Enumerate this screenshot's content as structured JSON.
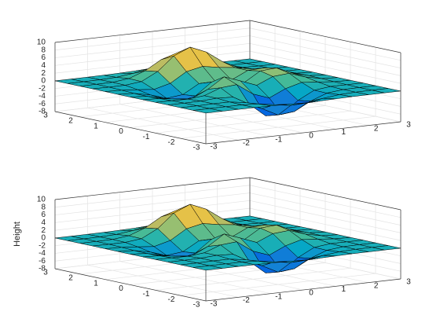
{
  "chart_data": [
    {
      "type": "surface",
      "x": [
        -3,
        -2.5,
        -2,
        -1.5,
        -1,
        -0.5,
        0,
        0.5,
        1,
        1.5,
        2,
        2.5,
        3
      ],
      "y": [
        -3,
        -2.5,
        -2,
        -1.5,
        -1,
        -0.5,
        0,
        0.5,
        1,
        1.5,
        2,
        2.5,
        3
      ],
      "z": [
        [
          0,
          0,
          0,
          0,
          -0.03,
          -0.14,
          -0.24,
          -0.22,
          -0.11,
          -0.03,
          -0.01,
          0,
          0
        ],
        [
          0,
          0,
          0.01,
          0,
          -0.23,
          -0.91,
          -1.57,
          -1.41,
          -0.69,
          -0.18,
          -0.03,
          0,
          0
        ],
        [
          0,
          0.01,
          0.05,
          0.05,
          -0.59,
          -2.63,
          -4.75,
          -4.34,
          -2.1,
          -0.53,
          -0.06,
          0,
          0
        ],
        [
          0,
          0.01,
          0.08,
          0.33,
          0.15,
          -2.19,
          -5.68,
          -5.76,
          -2.63,
          -0.44,
          0.04,
          0.03,
          0
        ],
        [
          -0.01,
          -0.06,
          -0.13,
          0.3,
          1.86,
          2.22,
          -0.72,
          -2.22,
          -0.27,
          0.88,
          0.5,
          0.11,
          0.01
        ],
        [
          -0.03,
          -0.2,
          -0.8,
          -1.21,
          0.8,
          3.55,
          2,
          0.39,
          2.2,
          2.56,
          1.12,
          0.24,
          0.03
        ],
        [
          -0.04,
          -0.3,
          -1.33,
          -2.77,
          -1.65,
          1.48,
          0.98,
          0.37,
          2.94,
          3.27,
          1.41,
          0.3,
          0.03
        ],
        [
          -0.03,
          -0.25,
          -1.12,
          -2.49,
          -2,
          0.39,
          0.46,
          0.38,
          2.38,
          2.56,
          1.09,
          0.23,
          0.03
        ],
        [
          -0.01,
          -0.11,
          -0.48,
          -0.86,
          0.23,
          2.79,
          3.69,
          2.94,
          2.43,
          1.58,
          0.58,
          0.11,
          0.01
        ],
        [
          0,
          -0.02,
          -0.01,
          0.47,
          2.61,
          6.2,
          8,
          6.25,
          3.26,
          1.19,
          0.29,
          0.05,
          0
        ],
        [
          0,
          0.01,
          0.08,
          0.55,
          2.1,
          4.55,
          5.85,
          4.56,
          2.21,
          0.68,
          0.13,
          0.02,
          0
        ],
        [
          0,
          0,
          0.03,
          0.19,
          0.69,
          1.47,
          1.88,
          1.47,
          0.7,
          0.21,
          0.04,
          0,
          0
        ],
        [
          0,
          0,
          0.01,
          0.03,
          0.11,
          0.23,
          0.3,
          0.23,
          0.11,
          0.03,
          0.01,
          0,
          0
        ]
      ],
      "xlim": [
        -3,
        3
      ],
      "ylim": [
        -3,
        3
      ],
      "zlim": [
        -8,
        10
      ],
      "xticks": [
        -3,
        -2,
        -1,
        0,
        1,
        2,
        3
      ],
      "yticks": [
        -3,
        -2,
        -1,
        0,
        1,
        2,
        3
      ],
      "zticks": [
        -8,
        -6,
        -4,
        -2,
        0,
        2,
        4,
        6,
        8,
        10
      ],
      "grid": true,
      "edge_color": "#000000",
      "colormap": [
        "#352a87",
        "#0363e1",
        "#1485d4",
        "#06a7c6",
        "#38b99e",
        "#92bf73",
        "#d9ba56",
        "#fcce2e",
        "#f9fb0e"
      ]
    },
    {
      "type": "surface",
      "x": [
        -3,
        -2.5,
        -2,
        -1.5,
        -1,
        -0.5,
        0,
        0.5,
        1,
        1.5,
        2,
        2.5,
        3
      ],
      "y": [
        -3,
        -2.5,
        -2,
        -1.5,
        -1,
        -0.5,
        0,
        0.5,
        1,
        1.5,
        2,
        2.5,
        3
      ],
      "z": [
        [
          0,
          0,
          0,
          0,
          -0.03,
          -0.14,
          -0.24,
          -0.22,
          -0.11,
          -0.03,
          -0.01,
          0,
          0
        ],
        [
          0,
          0,
          0.01,
          0,
          -0.23,
          -0.91,
          -1.57,
          -1.41,
          -0.69,
          -0.18,
          -0.03,
          0,
          0
        ],
        [
          0,
          0.01,
          0.05,
          0.05,
          -0.59,
          -2.63,
          -4.75,
          -4.34,
          -2.1,
          -0.53,
          -0.06,
          0,
          0
        ],
        [
          0,
          0.01,
          0.08,
          0.33,
          0.15,
          -2.19,
          -5.68,
          -5.76,
          -2.63,
          -0.44,
          0.04,
          0.03,
          0
        ],
        [
          -0.01,
          -0.06,
          -0.13,
          0.3,
          1.86,
          2.22,
          -0.72,
          -2.22,
          -0.27,
          0.88,
          0.5,
          0.11,
          0.01
        ],
        [
          -0.03,
          -0.2,
          -0.8,
          -1.21,
          0.8,
          3.55,
          2,
          0.39,
          2.2,
          2.56,
          1.12,
          0.24,
          0.03
        ],
        [
          -0.04,
          -0.3,
          -1.33,
          -2.77,
          -1.65,
          1.48,
          0.98,
          0.37,
          2.94,
          3.27,
          1.41,
          0.3,
          0.03
        ],
        [
          -0.03,
          -0.25,
          -1.12,
          -2.49,
          -2,
          0.39,
          0.46,
          0.38,
          2.38,
          2.56,
          1.09,
          0.23,
          0.03
        ],
        [
          -0.01,
          -0.11,
          -0.48,
          -0.86,
          0.23,
          2.79,
          3.69,
          2.94,
          2.43,
          1.58,
          0.58,
          0.11,
          0.01
        ],
        [
          0,
          -0.02,
          -0.01,
          0.47,
          2.61,
          6.2,
          8,
          6.25,
          3.26,
          1.19,
          0.29,
          0.05,
          0
        ],
        [
          0,
          0.01,
          0.08,
          0.55,
          2.1,
          4.55,
          5.85,
          4.56,
          2.21,
          0.68,
          0.13,
          0.02,
          0
        ],
        [
          0,
          0,
          0.03,
          0.19,
          0.69,
          1.47,
          1.88,
          1.47,
          0.7,
          0.21,
          0.04,
          0,
          0
        ],
        [
          0,
          0,
          0.01,
          0.03,
          0.11,
          0.23,
          0.3,
          0.23,
          0.11,
          0.03,
          0.01,
          0,
          0
        ]
      ],
      "xlim": [
        -3,
        3
      ],
      "ylim": [
        -3,
        3
      ],
      "zlim": [
        -8,
        10
      ],
      "xticks": [
        -3,
        -2,
        -1,
        0,
        1,
        2,
        3
      ],
      "yticks": [
        -3,
        -2,
        -1,
        0,
        1,
        2,
        3
      ],
      "zticks": [
        -8,
        -6,
        -4,
        -2,
        0,
        2,
        4,
        6,
        8,
        10
      ],
      "zlabel": "Height",
      "grid": true,
      "edge_color": "#000000",
      "colormap": [
        "#352a87",
        "#0363e1",
        "#1485d4",
        "#06a7c6",
        "#38b99e",
        "#92bf73",
        "#d9ba56",
        "#fcce2e",
        "#f9fb0e"
      ]
    }
  ]
}
